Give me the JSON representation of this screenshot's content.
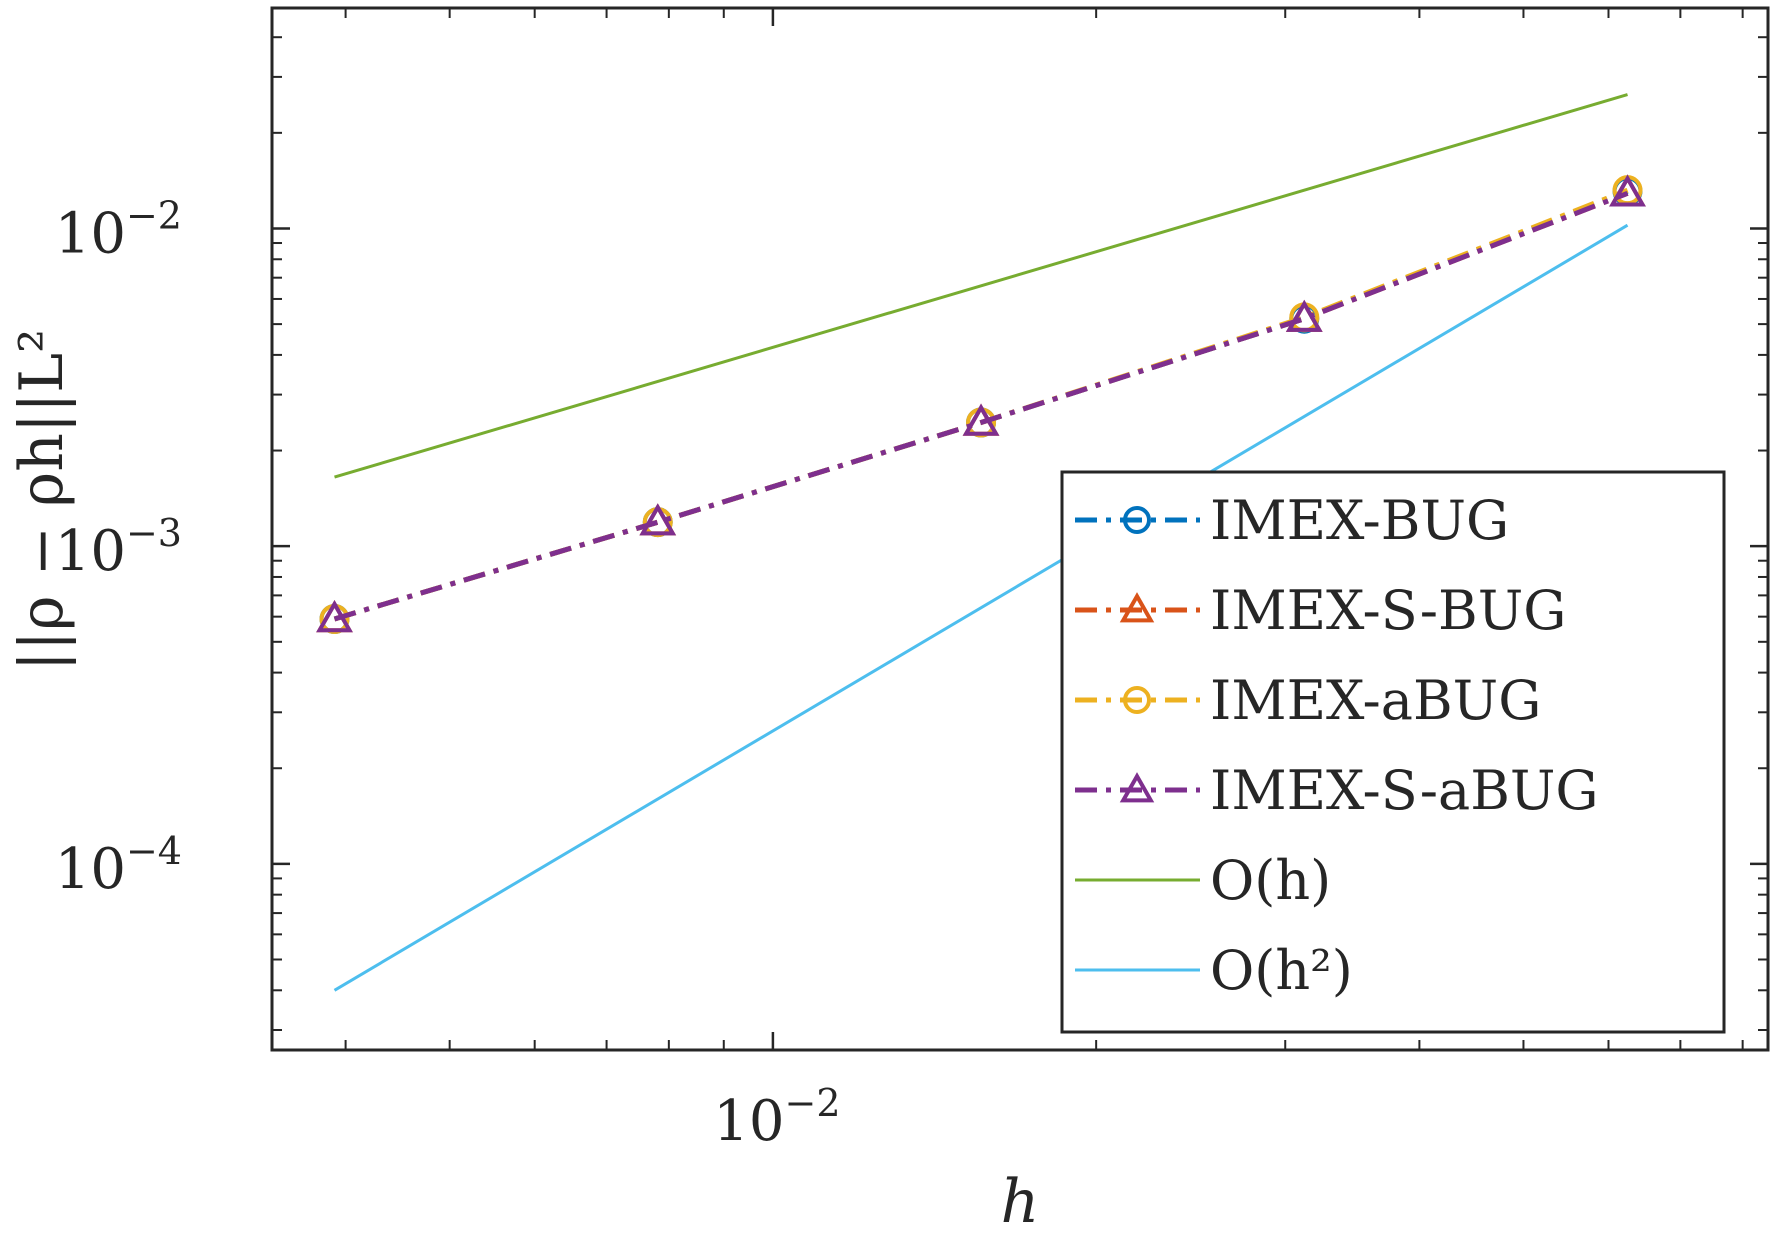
{
  "chart_data": {
    "type": "line",
    "xscale": "log",
    "yscale": "log",
    "xlabel": "h",
    "ylabel": "||ρ − ρh||L²",
    "xlim": [
      0.003416,
      0.08447
    ],
    "ylim": [
      2.595e-05,
      0.04943
    ],
    "x_ticks": [
      {
        "value": 0.01,
        "base": "10",
        "exp": "−2"
      }
    ],
    "y_ticks": [
      {
        "value": 0.0001,
        "base": "10",
        "exp": "−4"
      },
      {
        "value": 0.001,
        "base": "10",
        "exp": "−3"
      },
      {
        "value": 0.01,
        "base": "10",
        "exp": "−2"
      }
    ],
    "grid": false,
    "legend_position": "bottom-right",
    "series": [
      {
        "name": "IMEX-BUG",
        "color": "#0072BD",
        "marker": "circle",
        "line": "dashdot",
        "x": [
          0.003906,
          0.007812,
          0.015625,
          0.03125,
          0.0625
        ],
        "y": [
          0.00059,
          0.00119,
          0.00245,
          0.0052,
          0.0131
        ]
      },
      {
        "name": "IMEX-S-BUG",
        "color": "#D95319",
        "marker": "triangle",
        "line": "dashdot",
        "x": [
          0.003906,
          0.007812,
          0.015625,
          0.03125,
          0.0625
        ],
        "y": [
          0.00059,
          0.00119,
          0.00245,
          0.0052,
          0.0129
        ]
      },
      {
        "name": "IMEX-aBUG",
        "color": "#EDB120",
        "marker": "circle",
        "line": "dashdot",
        "x": [
          0.003906,
          0.007812,
          0.015625,
          0.03125,
          0.0625
        ],
        "y": [
          0.00059,
          0.00119,
          0.00245,
          0.00525,
          0.0132
        ]
      },
      {
        "name": "IMEX-S-aBUG",
        "color": "#7E2F8E",
        "marker": "triangle",
        "line": "dashdot",
        "x": [
          0.003906,
          0.007812,
          0.015625,
          0.03125,
          0.0625
        ],
        "y": [
          0.00059,
          0.00119,
          0.00245,
          0.0052,
          0.0129
        ]
      },
      {
        "name": "O(h)",
        "color": "#77AC30",
        "marker": "none",
        "line": "solid",
        "x": [
          0.003906,
          0.0625
        ],
        "y": [
          0.00165,
          0.0264
        ]
      },
      {
        "name": "O(h²)",
        "color": "#4DBEEE",
        "marker": "none",
        "line": "solid",
        "x": [
          0.003906,
          0.0625
        ],
        "y": [
          4e-05,
          0.01024
        ]
      }
    ]
  }
}
